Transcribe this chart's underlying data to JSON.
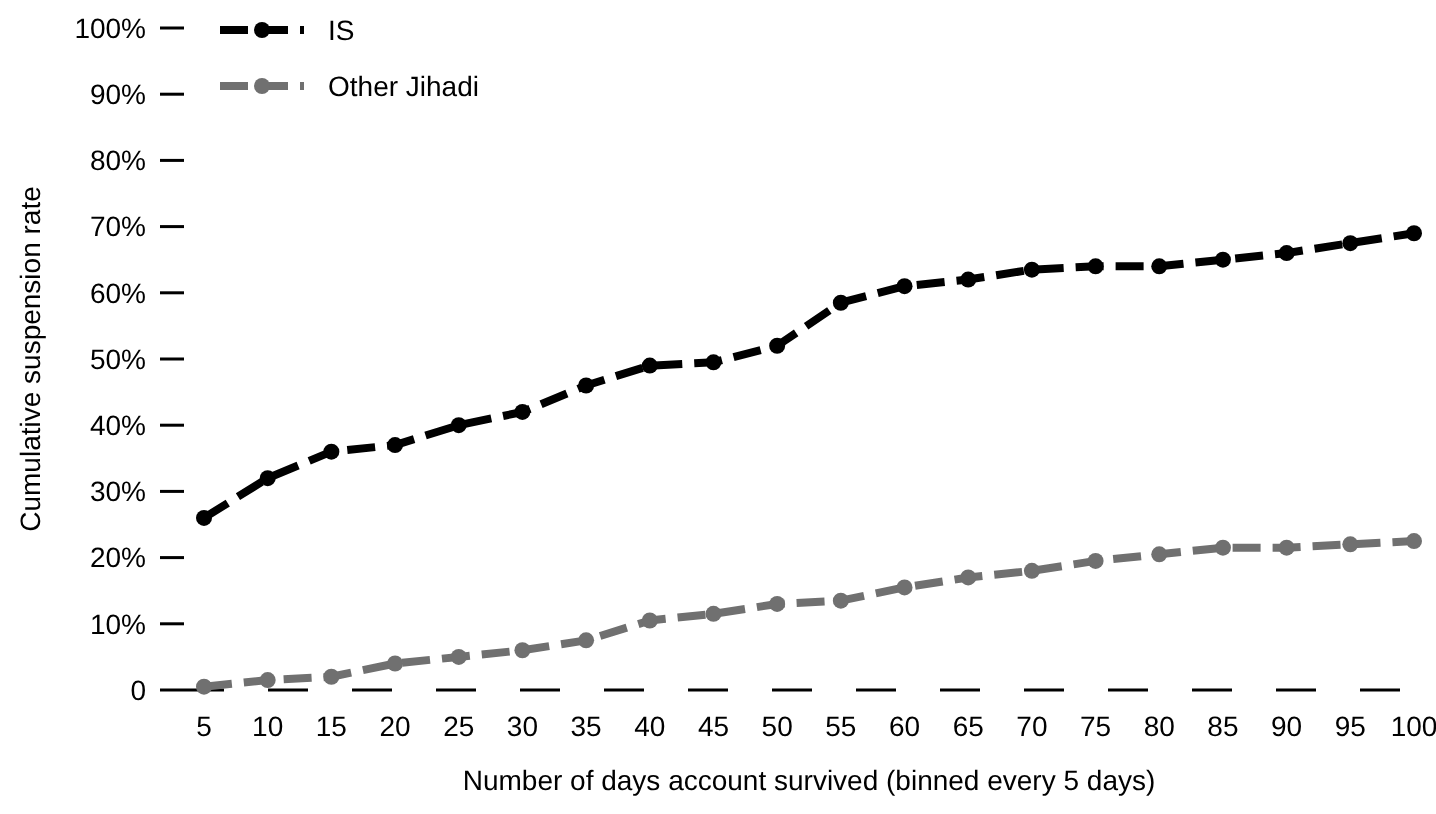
{
  "chart_data": {
    "type": "line",
    "xlabel": "Number of days account survived (binned every 5 days)",
    "ylabel": "Cumulative suspension rate",
    "categories": [
      "5",
      "10",
      "15",
      "20",
      "25",
      "30",
      "35",
      "40",
      "45",
      "50",
      "55",
      "60",
      "65",
      "70",
      "75",
      "80",
      "85",
      "90",
      "95",
      "100"
    ],
    "series": [
      {
        "name": "IS",
        "color": "#000000",
        "values": [
          26,
          32,
          36,
          37,
          40,
          42,
          46,
          49,
          49.5,
          52,
          58.5,
          61,
          62,
          63.5,
          64,
          64,
          65,
          66,
          67.5,
          69
        ]
      },
      {
        "name": "Other Jihadi",
        "color": "#707070",
        "values": [
          0.5,
          1.5,
          2,
          4,
          5,
          6,
          7.5,
          10.5,
          11.5,
          13,
          13.5,
          15.5,
          17,
          18,
          19.5,
          20.5,
          21.5,
          21.5,
          22,
          22.5
        ]
      }
    ],
    "ylim": [
      0,
      100
    ],
    "yticks": [
      {
        "value": 0,
        "label": "0"
      },
      {
        "value": 10,
        "label": "10%"
      },
      {
        "value": 20,
        "label": "20%"
      },
      {
        "value": 30,
        "label": "30%"
      },
      {
        "value": 40,
        "label": "40%"
      },
      {
        "value": 50,
        "label": "50%"
      },
      {
        "value": 60,
        "label": "60%"
      },
      {
        "value": 70,
        "label": "70%"
      },
      {
        "value": 80,
        "label": "80%"
      },
      {
        "value": 90,
        "label": "90%"
      },
      {
        "value": 100,
        "label": "100%"
      }
    ],
    "grid": false,
    "legend": "top left",
    "marker": "circle",
    "line_style": "dashed"
  }
}
